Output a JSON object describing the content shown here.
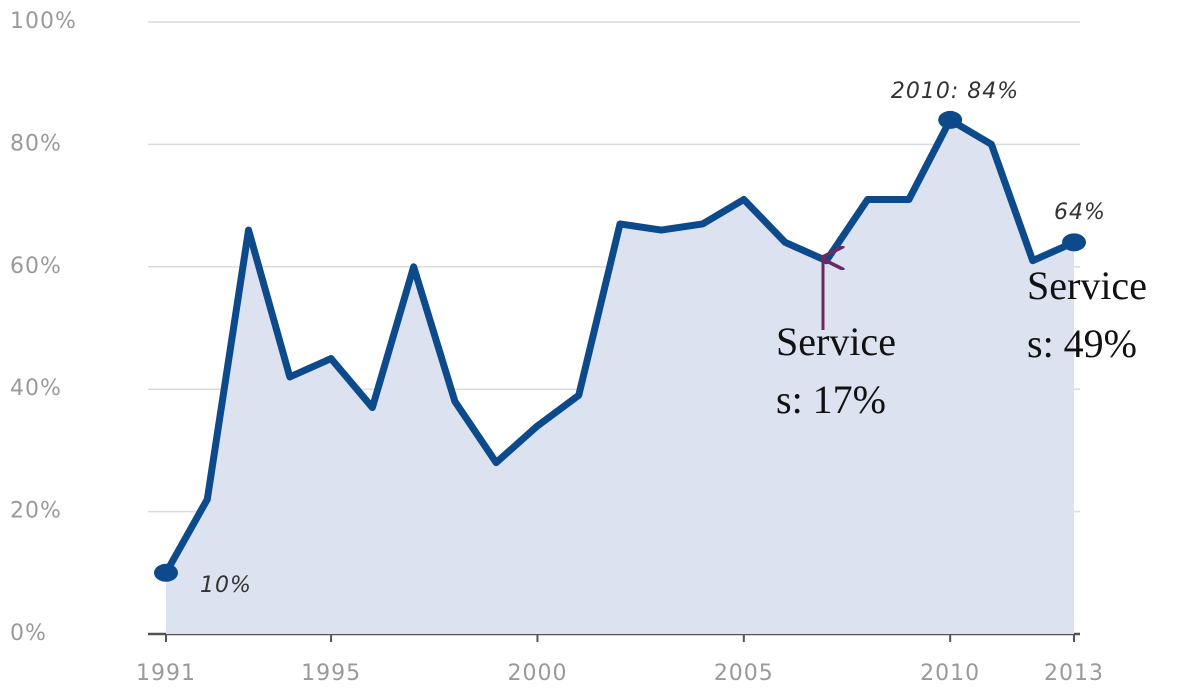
{
  "chart_data": {
    "type": "area",
    "x": [
      1991,
      1992,
      1993,
      1994,
      1995,
      1996,
      1997,
      1998,
      1999,
      2000,
      2001,
      2002,
      2003,
      2004,
      2005,
      2006,
      2007,
      2008,
      2009,
      2010,
      2011,
      2012,
      2013
    ],
    "series": [
      {
        "color": "#0d4a8c",
        "fill": "#dde2f0",
        "values": [
          10,
          22,
          66,
          42,
          45,
          37,
          60,
          38,
          28,
          34,
          39,
          67,
          66,
          67,
          71,
          64,
          61,
          71,
          71,
          84,
          80,
          61,
          64
        ]
      }
    ],
    "xlim": [
      1991,
      2013
    ],
    "xticks": [
      1991,
      1995,
      2000,
      2005,
      2010,
      2013
    ],
    "ylim": [
      0,
      100
    ],
    "yticks": [
      {
        "value": 0,
        "label": "0%"
      },
      {
        "value": 20,
        "label": "20%"
      },
      {
        "value": 40,
        "label": "40%"
      },
      {
        "value": 60,
        "label": "60%"
      },
      {
        "value": 80,
        "label": "80%"
      },
      {
        "value": 100,
        "label": "100%"
      }
    ],
    "grid": true,
    "annotations": [
      "10%",
      "2010: 84%",
      "64%"
    ],
    "callouts": [
      [
        "Service",
        "s: 17%"
      ],
      [
        "Service",
        "s: 49%"
      ]
    ]
  }
}
